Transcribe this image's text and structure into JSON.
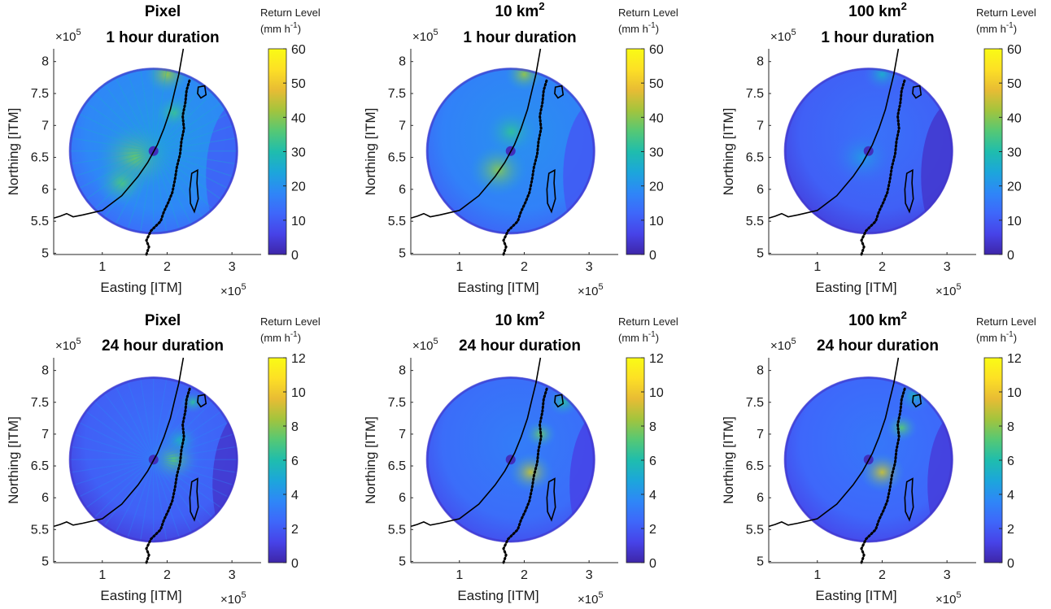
{
  "figure": {
    "xlabel": "Easting [ITM]",
    "ylabel": "Northing [ITM]",
    "axis_multiplier": "×10",
    "axis_multiplier_exp": "5",
    "colorbar_label_line1": "Return Level",
    "colorbar_label_line2": "(mm h",
    "colorbar_label_exp": "-1",
    "colorbar_label_close": ")",
    "colormap": "parula",
    "colors": {
      "ramp": [
        "#3e26a8",
        "#4743e8",
        "#3e67fa",
        "#2e87f7",
        "#1ca6db",
        "#1fbdad",
        "#55c875",
        "#a3c43d",
        "#e8bc34",
        "#fde025",
        "#f9fb15"
      ],
      "background": "#ffffff",
      "outline": "#000000"
    },
    "overlays": [
      "coastline-line",
      "border-dotted-line",
      "lake-outline",
      "radar-site-marker"
    ]
  },
  "chart_data": [
    {
      "type": "heatmap",
      "panel": "pixel-1h",
      "title_main": "Pixel",
      "title_exp": "",
      "subtitle": "1 hour duration",
      "xticks": [
        1,
        2,
        3
      ],
      "yticks": [
        5,
        5.5,
        6,
        6.5,
        7,
        7.5,
        8
      ],
      "xlim": [
        0.25,
        3.45
      ],
      "ylim": [
        4.98,
        8.2
      ],
      "clim": [
        0,
        60
      ],
      "cbar_ticks": [
        0,
        10,
        20,
        30,
        40,
        50,
        60
      ],
      "radar_center": [
        1.79,
        6.6
      ],
      "radar_radius": 1.3,
      "grid": false,
      "legend": "none"
    },
    {
      "type": "heatmap",
      "panel": "10km2-1h",
      "title_main": "10 km",
      "title_exp": "2",
      "subtitle": "1 hour duration",
      "xticks": [
        1,
        2,
        3
      ],
      "yticks": [
        5,
        5.5,
        6,
        6.5,
        7,
        7.5,
        8
      ],
      "xlim": [
        0.25,
        3.45
      ],
      "ylim": [
        4.98,
        8.2
      ],
      "clim": [
        0,
        60
      ],
      "cbar_ticks": [
        0,
        10,
        20,
        30,
        40,
        50,
        60
      ],
      "radar_center": [
        1.79,
        6.6
      ],
      "radar_radius": 1.3,
      "grid": false,
      "legend": "none"
    },
    {
      "type": "heatmap",
      "panel": "100km2-1h",
      "title_main": "100 km",
      "title_exp": "2",
      "subtitle": "1 hour duration",
      "xticks": [
        1,
        2,
        3
      ],
      "yticks": [
        5,
        5.5,
        6,
        6.5,
        7,
        7.5,
        8
      ],
      "xlim": [
        0.25,
        3.45
      ],
      "ylim": [
        4.98,
        8.2
      ],
      "clim": [
        0,
        60
      ],
      "cbar_ticks": [
        0,
        10,
        20,
        30,
        40,
        50,
        60
      ],
      "radar_center": [
        1.79,
        6.6
      ],
      "radar_radius": 1.3,
      "grid": false,
      "legend": "none"
    },
    {
      "type": "heatmap",
      "panel": "pixel-24h",
      "title_main": "Pixel",
      "title_exp": "",
      "subtitle": "24 hour duration",
      "xticks": [
        1,
        2,
        3
      ],
      "yticks": [
        5,
        5.5,
        6,
        6.5,
        7,
        7.5,
        8
      ],
      "xlim": [
        0.25,
        3.45
      ],
      "ylim": [
        4.98,
        8.2
      ],
      "clim": [
        0,
        12
      ],
      "cbar_ticks": [
        0,
        2,
        4,
        6,
        8,
        10,
        12
      ],
      "radar_center": [
        1.79,
        6.6
      ],
      "radar_radius": 1.3,
      "grid": false,
      "legend": "none"
    },
    {
      "type": "heatmap",
      "panel": "10km2-24h",
      "title_main": "10 km",
      "title_exp": "2",
      "subtitle": "24 hour duration",
      "xticks": [
        1,
        2,
        3
      ],
      "yticks": [
        5,
        5.5,
        6,
        6.5,
        7,
        7.5,
        8
      ],
      "xlim": [
        0.25,
        3.45
      ],
      "ylim": [
        4.98,
        8.2
      ],
      "clim": [
        0,
        12
      ],
      "cbar_ticks": [
        0,
        2,
        4,
        6,
        8,
        10,
        12
      ],
      "radar_center": [
        1.79,
        6.6
      ],
      "radar_radius": 1.3,
      "grid": false,
      "legend": "none"
    },
    {
      "type": "heatmap",
      "panel": "100km2-24h",
      "title_main": "100 km",
      "title_exp": "2",
      "subtitle": "24 hour duration",
      "xticks": [
        1,
        2,
        3
      ],
      "yticks": [
        5,
        5.5,
        6,
        6.5,
        7,
        7.5,
        8
      ],
      "xlim": [
        0.25,
        3.45
      ],
      "ylim": [
        4.98,
        8.2
      ],
      "clim": [
        0,
        12
      ],
      "cbar_ticks": [
        0,
        2,
        4,
        6,
        8,
        10,
        12
      ],
      "radar_center": [
        1.79,
        6.6
      ],
      "radar_radius": 1.3,
      "grid": false,
      "legend": "none"
    }
  ]
}
